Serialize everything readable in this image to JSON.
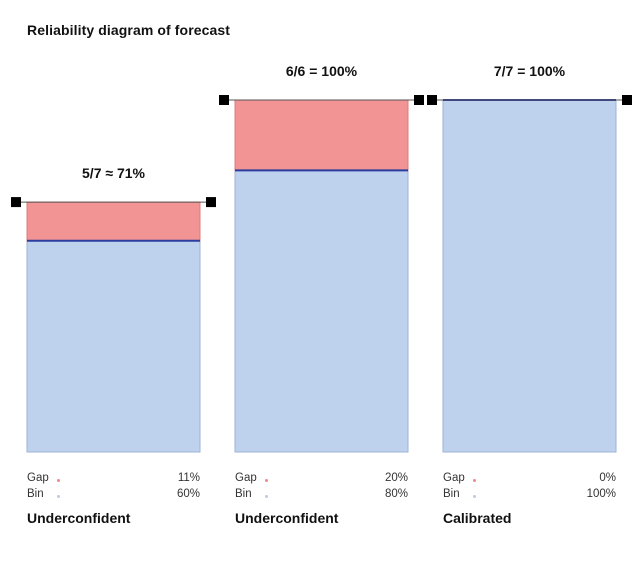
{
  "title": "Reliability diagram of forecast",
  "colors": {
    "bin_fill": "#bed2ee",
    "bin_stroke": "#9db3d4",
    "gap_fill": "#f29494",
    "gap_stroke": "#d87c7c",
    "accuracy_line": "#2b3d9e",
    "handle": "#000000",
    "gap_dot": "#f08a8a",
    "bin_dot": "#bccce8"
  },
  "chart_data": {
    "type": "bar",
    "ylim": [
      0,
      100
    ],
    "categories": [
      "Underconfident",
      "Underconfident",
      "Calibrated"
    ],
    "series": [
      {
        "name": "Bin",
        "values": [
          60,
          80,
          100
        ]
      },
      {
        "name": "Gap",
        "values": [
          11,
          20,
          0
        ]
      }
    ],
    "annotations": [
      "5/7 ≈ 71%",
      "6/6 = 100%",
      "7/7 = 100%"
    ],
    "accuracy": [
      71,
      100,
      100
    ],
    "panels": [
      {
        "annotation": "5/7 ≈ 71%",
        "accuracy": 71,
        "bin": 60,
        "gap": 11,
        "gap_label": "Gap",
        "gap_text": "11%",
        "bin_label": "Bin",
        "bin_text": "60%",
        "verdict": "Underconfident"
      },
      {
        "annotation": "6/6 = 100%",
        "accuracy": 100,
        "bin": 80,
        "gap": 20,
        "gap_label": "Gap",
        "gap_text": "20%",
        "bin_label": "Bin",
        "bin_text": "80%",
        "verdict": "Underconfident"
      },
      {
        "annotation": "7/7 = 100%",
        "accuracy": 100,
        "bin": 100,
        "gap": 0,
        "gap_label": "Gap",
        "gap_text": "0%",
        "bin_label": "Bin",
        "bin_text": "100%",
        "verdict": "Calibrated"
      }
    ]
  }
}
